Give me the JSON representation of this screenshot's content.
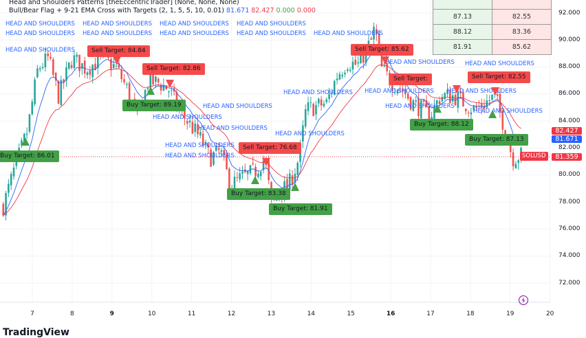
{
  "legend": {
    "line1": "Head and Shoulders Patterns [theEccentricTrader] (None, None, None)",
    "line2": "Bull/Bear Flag + 9-21 EMA Cross with Targets (2, 1, 5, 5, 10, 0.01)",
    "v1": "81.671",
    "v2": "82.427",
    "v3": "0.000",
    "v4": "0.000"
  },
  "table": {
    "rows": [
      [
        "87.13",
        "82.55"
      ],
      [
        "88.12",
        "83.36"
      ],
      [
        "81.91",
        "85.62"
      ]
    ]
  },
  "price_labels": {
    "ema21": "82.427",
    "ema9": "81.671",
    "symbol": "SOLUSD",
    "last": "81.359"
  },
  "labels": {
    "hs": "HEAD AND SHOULDERS",
    "buy": [
      "Buy Target: 86.01",
      "Buy Target: 89.19",
      "Buy Target: 83.38",
      "Buy Target: 81.91",
      "Buy Target: 88.12",
      "Buy Target: 87.13"
    ],
    "sell": [
      "Sell Target: 84.84",
      "Sell Target: 82.86",
      "Sell Target: 76.68",
      "Sell Target: 85.62",
      "Sell Target: 82.55",
      "Sell Target: "
    ]
  },
  "logo": "TradingView",
  "colors": {
    "up": "#26a69a",
    "down": "#ef5350",
    "ema_fast": "#2962ff",
    "ema_slow": "#f23645",
    "buy": "#43a047",
    "sell": "#f44a4a"
  },
  "chart_data": {
    "type": "candlestick",
    "symbol": "SOLUSD",
    "ylim": [
      71,
      93
    ],
    "yticks": [
      "92.000",
      "90.000",
      "88.000",
      "86.000",
      "84.000",
      "82.000",
      "80.000",
      "78.000",
      "76.000",
      "74.000",
      "72.000"
    ],
    "xticks": [
      "7",
      "8",
      "9",
      "10",
      "11",
      "12",
      "13",
      "14",
      "15",
      "16",
      "17",
      "18",
      "19",
      "20"
    ],
    "grid": true,
    "close_path": {
      "x": [
        6.27,
        6.53,
        6.88,
        7.14,
        7.4,
        7.66,
        8.0,
        8.35,
        8.78,
        9.12,
        9.38,
        9.64,
        9.9,
        10.16,
        10.42,
        10.68,
        10.94,
        11.2,
        11.46,
        11.72,
        11.97,
        12.23,
        12.58,
        12.84,
        13.01,
        13.18,
        13.44,
        13.7,
        13.87,
        14.13,
        14.39,
        14.65,
        14.91,
        15.17,
        15.51,
        15.6,
        15.77,
        16.03,
        16.29,
        16.55,
        16.81,
        16.98,
        17.24,
        17.59,
        17.85,
        18.11,
        18.36,
        18.62,
        18.88,
        19.06,
        19.31
      ],
      "y": [
        77.7,
        80.24,
        83.3,
        87.88,
        88.64,
        85.84,
        88.64,
        87.88,
        88.64,
        87.88,
        86.35,
        84.06,
        86.86,
        86.86,
        86.35,
        84.82,
        83.81,
        82.79,
        81.26,
        81.77,
        79.23,
        79.74,
        80.24,
        81.26,
        77.7,
        78.72,
        79.23,
        81.26,
        84.82,
        85.08,
        85.33,
        87.37,
        88.39,
        88.13,
        89.91,
        90.93,
        87.88,
        86.86,
        86.35,
        85.33,
        84.82,
        84.32,
        85.84,
        85.84,
        85.33,
        84.82,
        85.33,
        85.84,
        83.3,
        81.26,
        81.52
      ]
    },
    "last_price": 81.359
  }
}
